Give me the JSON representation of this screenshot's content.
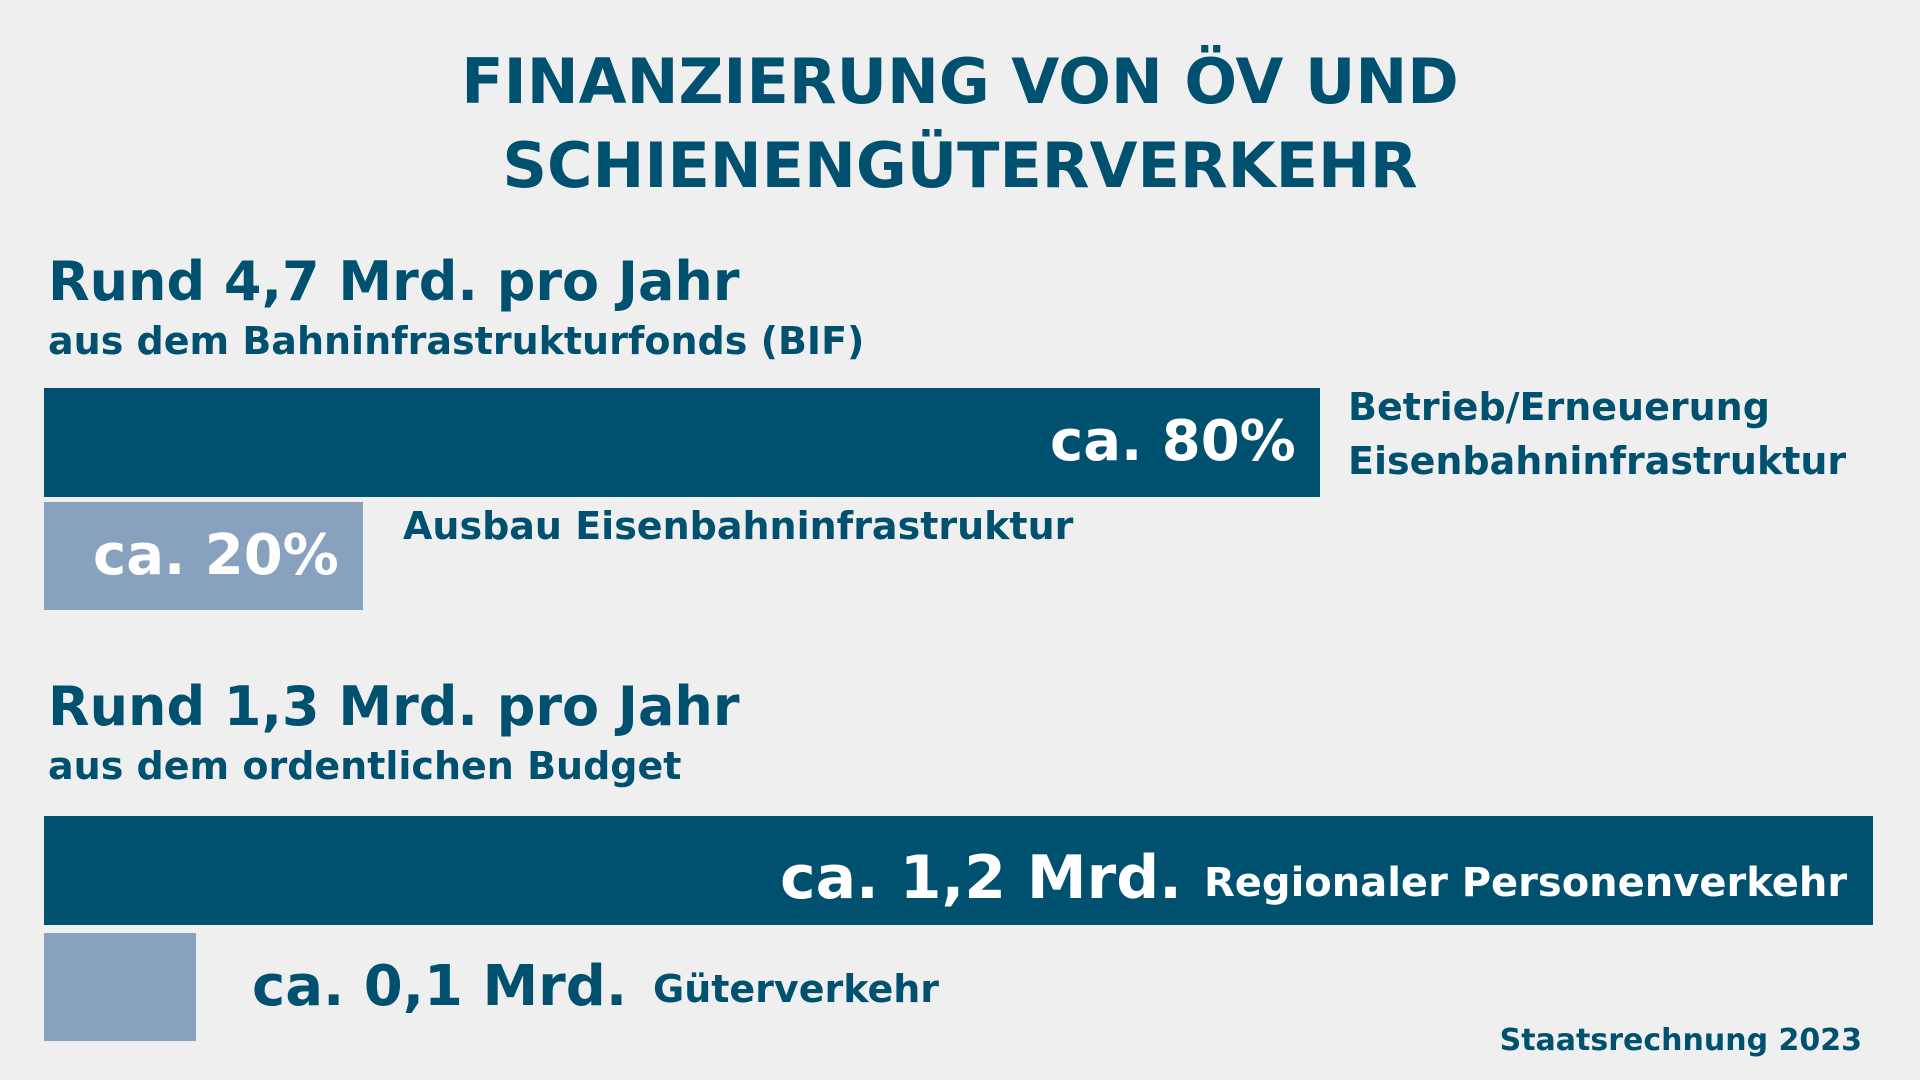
{
  "title_line1": "FINANZIERUNG VON ÖV UND",
  "title_line2": "SCHIENENGÜTERVERKEHR",
  "source": "Staatsrechnung 2023",
  "chart_data": [
    {
      "type": "bar",
      "orientation": "horizontal",
      "heading": "Rund 4,7 Mrd. pro Jahr",
      "subheading": "aus dem Bahninfrastrukturfonds (BIF)",
      "categories": [
        "Betrieb/Erneuerung Eisenbahninfrastruktur",
        "Ausbau Eisenbahninfrastruktur"
      ],
      "category_lines": [
        [
          "Betrieb/Erneuerung",
          "Eisenbahninfrastruktur"
        ],
        [
          "Ausbau Eisenbahninfrastruktur"
        ]
      ],
      "values": [
        80,
        20
      ],
      "value_labels": [
        "ca. 80%",
        "ca. 20%"
      ],
      "unit": "%",
      "colors": [
        "#00506f",
        "#87a1be"
      ]
    },
    {
      "type": "bar",
      "orientation": "horizontal",
      "heading": "Rund 1,3 Mrd. pro Jahr",
      "subheading": "aus dem ordentlichen Budget",
      "categories": [
        "Regionaler Personenverkehr",
        "Güterverkehr"
      ],
      "values": [
        1.2,
        0.1
      ],
      "value_labels": [
        "ca. 1,2 Mrd.",
        "ca. 0,1 Mrd."
      ],
      "unit": "Mrd.",
      "colors": [
        "#00506f",
        "#87a1be"
      ]
    }
  ]
}
